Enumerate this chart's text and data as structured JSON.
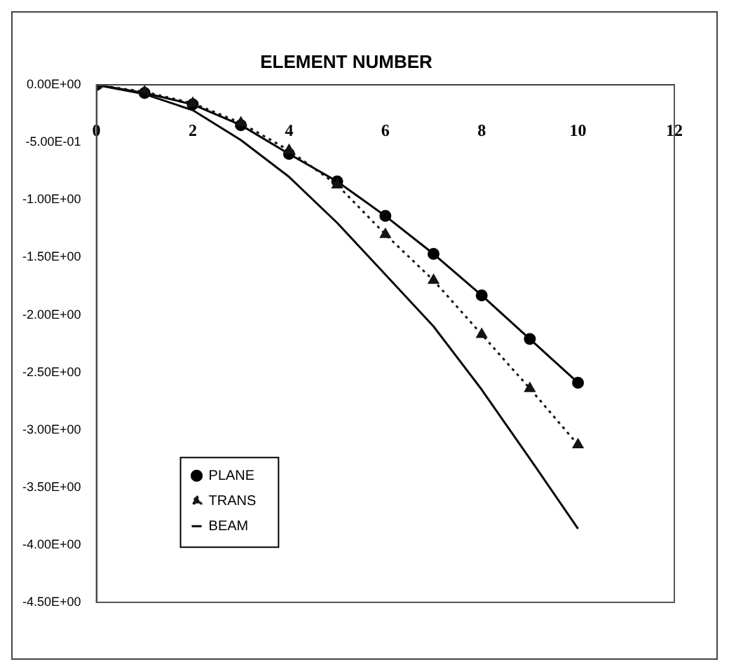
{
  "chart_data": {
    "type": "line",
    "xlabel": "ELEMENT NUMBER",
    "x": [
      0,
      1,
      2,
      3,
      4,
      5,
      6,
      7,
      8,
      9,
      10
    ],
    "series": [
      {
        "name": "PLANE",
        "color": "#000000",
        "marker": "circle",
        "line_style": "solid",
        "values": [
          0,
          -0.07,
          -0.17,
          -0.35,
          -0.6,
          -0.84,
          -1.14,
          -1.47,
          -1.83,
          -2.21,
          -2.59
        ]
      },
      {
        "name": "TRANS",
        "color": "#141414",
        "marker": "triangle",
        "line_style": "dotted",
        "values": [
          0,
          -0.06,
          -0.16,
          -0.33,
          -0.57,
          -0.87,
          -1.3,
          -1.7,
          -2.17,
          -2.64,
          -3.13
        ]
      },
      {
        "name": "BEAM",
        "color": "#0a0a0a",
        "marker": "none",
        "line_style": "solid",
        "values": [
          0,
          -0.08,
          -0.22,
          -0.48,
          -0.8,
          -1.2,
          -1.65,
          -2.1,
          -2.65,
          -3.25,
          -3.86
        ]
      }
    ],
    "xlim": [
      0,
      12
    ],
    "xticks": [
      0,
      2,
      4,
      6,
      8,
      10,
      12
    ],
    "ylim": [
      -4.5,
      0
    ],
    "yticks": [
      {
        "value": 0,
        "label": "0.00E+00"
      },
      {
        "value": -0.5,
        "label": "-5.00E-01"
      },
      {
        "value": -1,
        "label": "-1.00E+00"
      },
      {
        "value": -1.5,
        "label": "-1.50E+00"
      },
      {
        "value": -2,
        "label": "-2.00E+00"
      },
      {
        "value": -2.5,
        "label": "-2.50E+00"
      },
      {
        "value": -3,
        "label": "-3.00E+00"
      },
      {
        "value": -3.5,
        "label": "-3.50E+00"
      },
      {
        "value": -4,
        "label": "-4.00E+00"
      },
      {
        "value": -4.5,
        "label": "-4.50E+00"
      }
    ],
    "grid": false,
    "legend": "left"
  }
}
